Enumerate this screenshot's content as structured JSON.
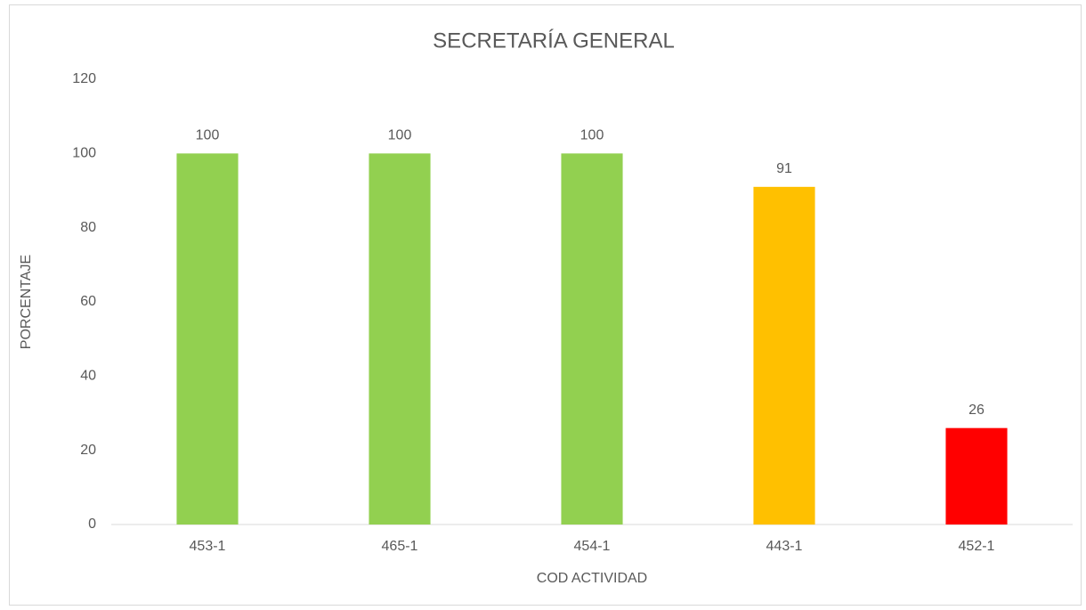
{
  "chart_data": {
    "type": "bar",
    "title": "SECRETARÍA GENERAL",
    "x_label": "COD ACTIVIDAD",
    "y_label": "PORCENTAJE",
    "categories": [
      "453-1",
      "465-1",
      "454-1",
      "443-1",
      "452-1"
    ],
    "values": [
      100,
      100,
      100,
      91,
      26
    ],
    "colors": [
      "#92d050",
      "#92d050",
      "#92d050",
      "#ffc000",
      "#ff0000"
    ],
    "ylim": [
      0,
      120
    ],
    "yticks": [
      0,
      20,
      40,
      60,
      80,
      100,
      120
    ],
    "grid": false
  }
}
